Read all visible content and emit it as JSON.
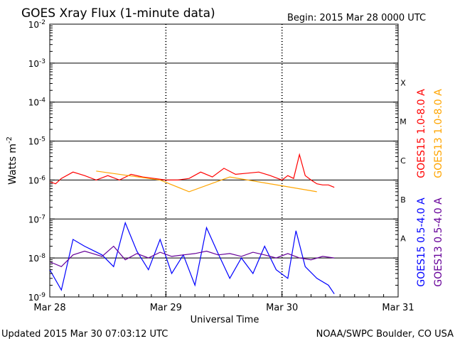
{
  "chart_data": {
    "type": "line",
    "title": "GOES Xray Flux (1-minute data)",
    "begin_label": "Begin:  2015 Mar 28 0000 UTC",
    "ylabel": "Watts m",
    "ylabel_sup": "-2",
    "xlabel": "Universal Time",
    "y_scale": "log",
    "ylim": [
      1e-09,
      0.01
    ],
    "y_ticks": [
      {
        "base": "10",
        "exp": "-9"
      },
      {
        "base": "10",
        "exp": "-8"
      },
      {
        "base": "10",
        "exp": "-7"
      },
      {
        "base": "10",
        "exp": "-6"
      },
      {
        "base": "10",
        "exp": "-5"
      },
      {
        "base": "10",
        "exp": "-4"
      },
      {
        "base": "10",
        "exp": "-3"
      },
      {
        "base": "10",
        "exp": "-2"
      }
    ],
    "x_ticks": [
      "Mar 28",
      "Mar 29",
      "Mar 30",
      "Mar 31"
    ],
    "xlim_days": [
      0,
      3
    ],
    "flare_classes": [
      {
        "label": "A",
        "log_center": -7.5
      },
      {
        "label": "B",
        "log_center": -6.5
      },
      {
        "label": "C",
        "log_center": -5.5
      },
      {
        "label": "M",
        "log_center": -4.5
      },
      {
        "label": "X",
        "log_center": -3.5
      }
    ],
    "grid": "horizontal lines at each decade from 1e-8 to 1e-3; dashed vertical lines at day boundaries",
    "legend_position": "right side, rotated",
    "series": [
      {
        "name": "GOES15 1.0-8.0 A",
        "color": "#ff0000",
        "x_days": [
          0,
          0.05,
          0.1,
          0.2,
          0.3,
          0.4,
          0.5,
          0.6,
          0.7,
          0.8,
          0.9,
          1.0,
          1.1,
          1.2,
          1.3,
          1.4,
          1.5,
          1.6,
          1.7,
          1.8,
          1.9,
          2.0,
          2.05,
          2.1,
          2.15,
          2.2,
          2.25,
          2.3,
          2.35,
          2.4,
          2.45
        ],
        "values": [
          9e-07,
          8e-07,
          1.1e-06,
          1.6e-06,
          1.3e-06,
          1e-06,
          1.3e-06,
          1e-06,
          1.4e-06,
          1.2e-06,
          1.1e-06,
          1e-06,
          1e-06,
          1.1e-06,
          1.6e-06,
          1.2e-06,
          2e-06,
          1.4e-06,
          1.5e-06,
          1.6e-06,
          1.3e-06,
          1e-06,
          1.3e-06,
          1.1e-06,
          4.5e-06,
          1.3e-06,
          1e-06,
          8e-07,
          7.5e-07,
          7.5e-07,
          6.5e-07
        ]
      },
      {
        "name": "GOES13 1.0-8.0 A",
        "color": "#ffa500",
        "x_days": [
          0.4,
          0.95,
          1.2,
          1.55,
          2.3
        ],
        "values": [
          1.7e-06,
          1e-06,
          5e-07,
          1.2e-06,
          5e-07
        ]
      },
      {
        "name": "GOES15 0.5-4.0 A",
        "color": "#0000ff",
        "x_days": [
          0,
          0.1,
          0.2,
          0.3,
          0.45,
          0.55,
          0.65,
          0.75,
          0.85,
          0.95,
          1.05,
          1.15,
          1.25,
          1.35,
          1.45,
          1.55,
          1.65,
          1.75,
          1.85,
          1.95,
          2.05,
          2.12,
          2.2,
          2.3,
          2.4,
          2.45
        ],
        "values": [
          5e-09,
          1.5e-09,
          3e-08,
          2e-08,
          1.2e-08,
          6e-09,
          8e-08,
          1.5e-08,
          5e-09,
          3e-08,
          4e-09,
          1.2e-08,
          2e-09,
          6e-08,
          1.3e-08,
          3e-09,
          1e-08,
          4e-09,
          2e-08,
          5e-09,
          3e-09,
          5e-08,
          6e-09,
          3e-09,
          2e-09,
          1.2e-09
        ]
      },
      {
        "name": "GOES13 0.5-4.0 A",
        "color": "#660099",
        "x_days": [
          0,
          0.1,
          0.2,
          0.3,
          0.45,
          0.55,
          0.65,
          0.75,
          0.85,
          0.95,
          1.05,
          1.15,
          1.25,
          1.35,
          1.45,
          1.55,
          1.65,
          1.75,
          1.85,
          1.95,
          2.05,
          2.15,
          2.25,
          2.35,
          2.45
        ],
        "values": [
          8e-09,
          6e-09,
          1.2e-08,
          1.5e-08,
          1.1e-08,
          2e-08,
          9e-09,
          1.3e-08,
          1e-08,
          1.4e-08,
          1.1e-08,
          1.2e-08,
          1.3e-08,
          1.5e-08,
          1.2e-08,
          1.3e-08,
          1.1e-08,
          1.4e-08,
          1.2e-08,
          1e-08,
          1.3e-08,
          1e-08,
          9e-09,
          1.1e-08,
          1e-08
        ]
      }
    ]
  },
  "footer": {
    "updated": "Updated 2015 Mar 30 07:03:12 UTC",
    "credit": "NOAA/SWPC Boulder, CO USA"
  }
}
